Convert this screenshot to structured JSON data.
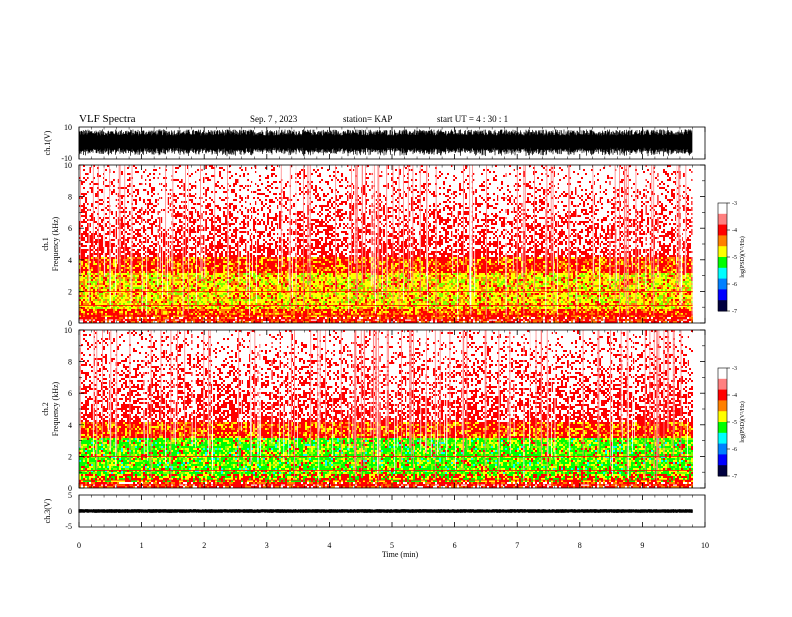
{
  "header": {
    "title": "VLF Spectra",
    "date": "Sep. 7 , 2023",
    "station": "station= KAP",
    "start": "start  UT =   4 : 30 : 1"
  },
  "colors": {
    "background": "#ffffff",
    "axis": "#000000",
    "trace": "#000000",
    "colormap": [
      "#ffffff",
      "#ff0000",
      "#ffff00",
      "#00ff00",
      "#00ffff",
      "#0000ff",
      "#000000"
    ]
  },
  "chart_data": [
    {
      "type": "line",
      "name": "ch1-waveform",
      "ylabel": "ch.1(V)",
      "ylim": [
        -10,
        10
      ],
      "yticks": [
        "10",
        "-10"
      ],
      "description_level": "noisy amplitude band filling approx -10..10 V",
      "amplitude_fraction": 0.85
    },
    {
      "type": "heatmap",
      "name": "ch1-spectrogram",
      "ylabel": "ch.1\nFrequency  (kHz)",
      "ylim": [
        0,
        10
      ],
      "yticks": [
        "0",
        "2",
        "4",
        "6",
        "8",
        "10"
      ],
      "colorbar": {
        "label": "log(PSD)(V²/Hz)",
        "range": [
          -7,
          -3
        ],
        "ticks": [
          "-3",
          "-4",
          "-5",
          "-6",
          "-7"
        ]
      },
      "bands": [
        {
          "f0": 0.0,
          "f1": 0.5,
          "dominant": "mixed"
        },
        {
          "f0": 0.5,
          "f1": 1.0,
          "dominant": "red"
        },
        {
          "f0": 1.0,
          "f1": 4.0,
          "dominant": "yellow-green"
        },
        {
          "f0": 4.0,
          "f1": 10.0,
          "dominant": "red-white"
        }
      ]
    },
    {
      "type": "heatmap",
      "name": "ch2-spectrogram",
      "ylabel": "ch.2\nFrequency  (kHz)",
      "ylim": [
        0,
        10
      ],
      "yticks": [
        "0",
        "2",
        "4",
        "6",
        "8",
        "10"
      ],
      "colorbar": {
        "label": "log(PSD)(V²/Hz)",
        "range": [
          -7,
          -3
        ],
        "ticks": [
          "-3",
          "-4",
          "-5",
          "-6",
          "-7"
        ]
      },
      "bands": [
        {
          "f0": 0.0,
          "f1": 0.5,
          "dominant": "red"
        },
        {
          "f0": 0.5,
          "f1": 3.0,
          "dominant": "green"
        },
        {
          "f0": 3.0,
          "f1": 4.0,
          "dominant": "yellow"
        },
        {
          "f0": 4.0,
          "f1": 10.0,
          "dominant": "red-white"
        }
      ]
    },
    {
      "type": "line",
      "name": "ch3-waveform",
      "ylabel": "ch.3(V)",
      "ylim": [
        -5,
        5
      ],
      "yticks": [
        "5",
        "0",
        "-5"
      ],
      "level_v": 0,
      "amplitude_v": 0.6
    }
  ],
  "xaxis": {
    "label": "Time  (min)",
    "range": [
      0,
      10
    ],
    "ticks": [
      "0",
      "1",
      "2",
      "3",
      "4",
      "5",
      "6",
      "7",
      "8",
      "9",
      "10"
    ],
    "data_end_min": 9.8
  }
}
